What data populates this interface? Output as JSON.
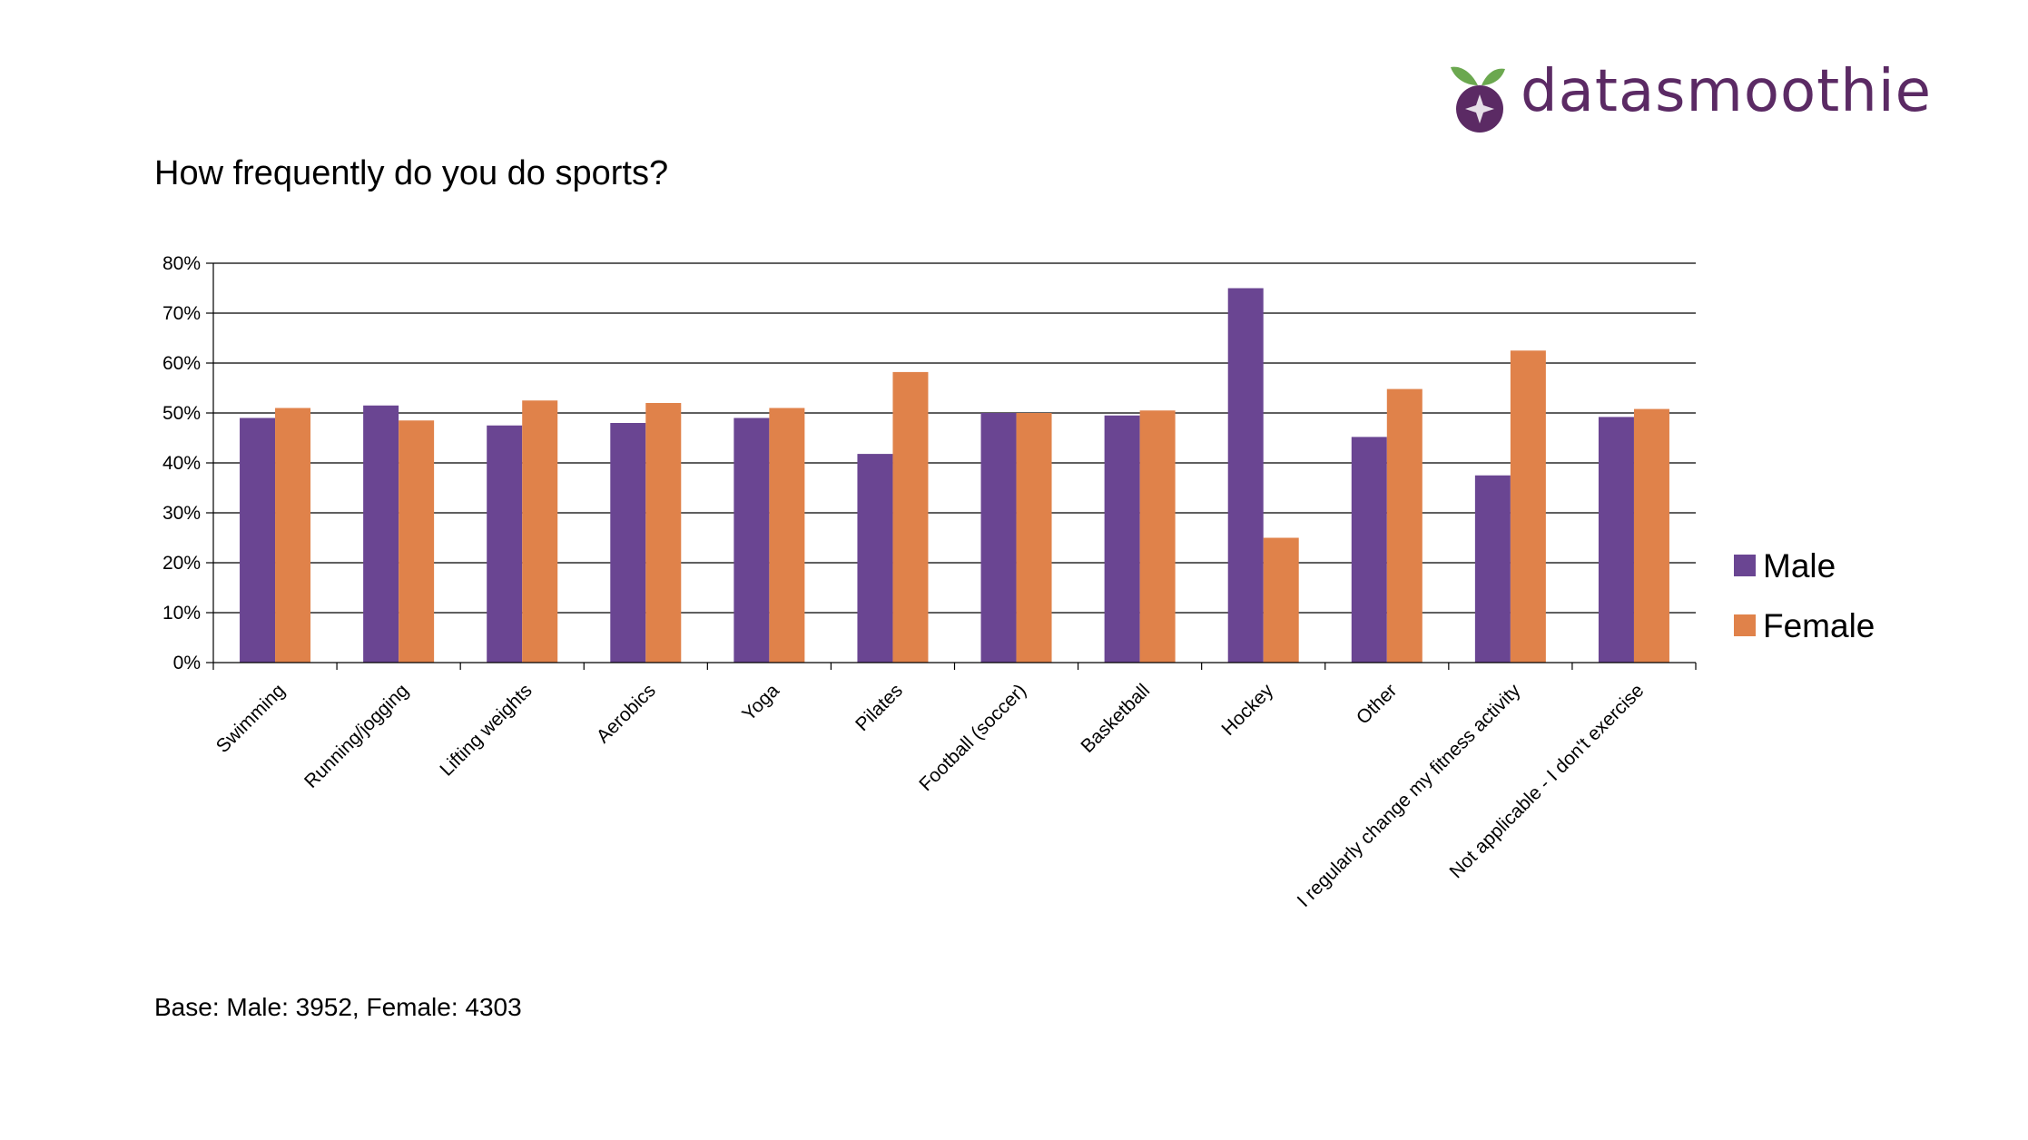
{
  "brand": {
    "name": "datasmoothie"
  },
  "colors": {
    "male": "#6a4592",
    "female": "#e0824a",
    "brand": "#5b2a64",
    "leaf": "#6ba84f"
  },
  "chart_title": "How frequently do you do sports?",
  "base_note": "Base: Male: 3952, Female: 4303",
  "chart_data": {
    "type": "bar",
    "title": "How frequently do you do sports?",
    "xlabel": "",
    "ylabel": "",
    "ylim": [
      0,
      80
    ],
    "yticks": [
      "0%",
      "10%",
      "20%",
      "30%",
      "40%",
      "50%",
      "60%",
      "70%",
      "80%"
    ],
    "grid": true,
    "legend": "right",
    "categories": [
      "Swimming",
      "Running/jogging",
      "Lifting weights",
      "Aerobics",
      "Yoga",
      "Pilates",
      "Football (soccer)",
      "Basketball",
      "Hockey",
      "Other",
      "I regularly change my fitness activity",
      "Not applicable - I don't exercise"
    ],
    "series": [
      {
        "name": "Male",
        "values": [
          49,
          51.5,
          47.5,
          48,
          49,
          41.8,
          50,
          49.5,
          75,
          45.2,
          37.5,
          49.2
        ]
      },
      {
        "name": "Female",
        "values": [
          51,
          48.5,
          52.5,
          52,
          51,
          58.2,
          50,
          50.5,
          25,
          54.8,
          62.5,
          50.8
        ]
      }
    ]
  }
}
